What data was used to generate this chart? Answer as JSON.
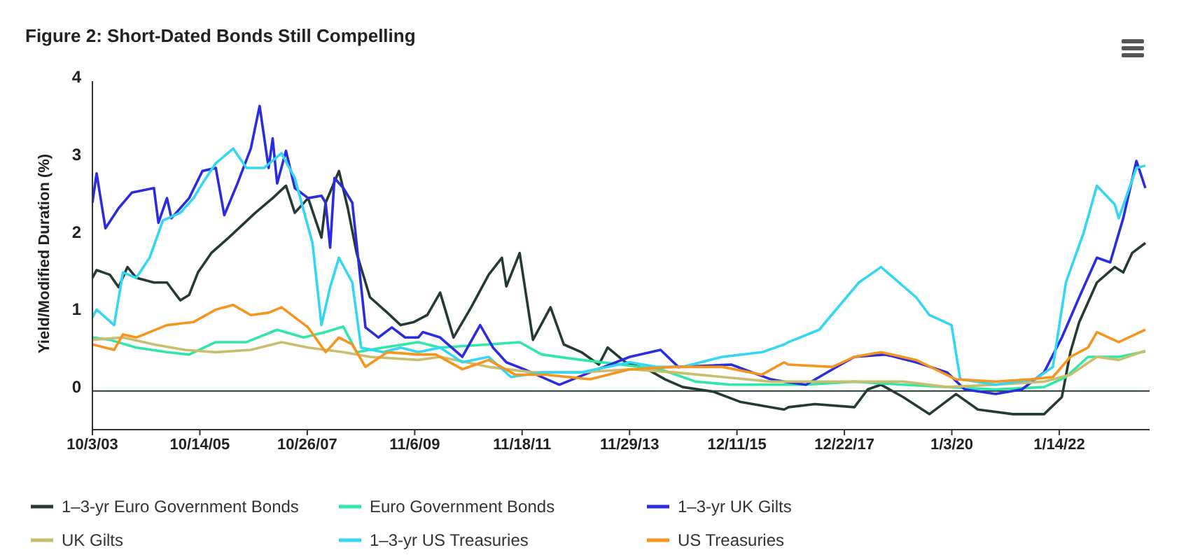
{
  "chart_data": {
    "type": "line",
    "title": "Figure 2: Short-Dated Bonds Still Compelling",
    "ylabel": "Yield/Modified Duration (%)",
    "xlim": [
      "2003-10-03",
      "2023-09-30"
    ],
    "xticks": [
      {
        "value": "2003-10-03",
        "label": "10/3/03"
      },
      {
        "value": "2005-10-14",
        "label": "10/14/05"
      },
      {
        "value": "2007-10-26",
        "label": "10/26/07"
      },
      {
        "value": "2009-11-06",
        "label": "11/6/09"
      },
      {
        "value": "2011-11-18",
        "label": "11/18/11"
      },
      {
        "value": "2013-11-29",
        "label": "11/29/13"
      },
      {
        "value": "2015-12-11",
        "label": "12/11/15"
      },
      {
        "value": "2017-12-22",
        "label": "12/22/17"
      },
      {
        "value": "2020-01-03",
        "label": "1/3/20"
      },
      {
        "value": "2022-01-14",
        "label": "1/14/22"
      }
    ],
    "ylim": [
      -0.5,
      4
    ],
    "yticks": [
      0,
      1,
      2,
      3,
      4
    ],
    "grid": false,
    "legend": "bottom",
    "marker": "none",
    "line_style": "solid",
    "ref_lines": [
      {
        "axis": "y",
        "value": 0,
        "label": null,
        "color": "#263b30"
      }
    ],
    "series": [
      {
        "name": "1–3-yr Euro Government Bonds",
        "color": "#263b30",
        "x": [
          "2003-10-03",
          "2003-11",
          "2004-02",
          "2004-04",
          "2004-06",
          "2004-08",
          "2004-12",
          "2005-03",
          "2005-06",
          "2005-08",
          "2005-10",
          "2006-01",
          "2006-05",
          "2006-08",
          "2006-11",
          "2007-03",
          "2007-06",
          "2007-08",
          "2007-11",
          "2008-02",
          "2008-03",
          "2008-06",
          "2008-08",
          "2008-10",
          "2009-01",
          "2009-05",
          "2009-08",
          "2009-11",
          "2010-02",
          "2010-05",
          "2010-08",
          "2010-12",
          "2011-04",
          "2011-07",
          "2011-08",
          "2011-11",
          "2012-02",
          "2012-06",
          "2012-09",
          "2013-01",
          "2013-05",
          "2013-07",
          "2013-11",
          "2014-04",
          "2014-08",
          "2014-12",
          "2015-07",
          "2016-01",
          "2016-08",
          "2016-11",
          "2016-12",
          "2017-06",
          "2018-03",
          "2018-06",
          "2018-09",
          "2019-02",
          "2019-08",
          "2020-02",
          "2020-07",
          "2021-03",
          "2021-10",
          "2022-02",
          "2022-04",
          "2022-06",
          "2022-10",
          "2023-02",
          "2023-04",
          "2023-06",
          "2023-09"
        ],
        "values": [
          1.46,
          1.56,
          1.5,
          1.34,
          1.6,
          1.46,
          1.4,
          1.4,
          1.17,
          1.24,
          1.53,
          1.78,
          1.98,
          2.14,
          2.3,
          2.49,
          2.65,
          2.3,
          2.49,
          1.98,
          2.43,
          2.84,
          2.36,
          1.78,
          1.21,
          1.01,
          0.85,
          0.89,
          0.98,
          1.27,
          0.69,
          1.08,
          1.5,
          1.72,
          1.35,
          1.78,
          0.66,
          1.08,
          0.6,
          0.5,
          0.34,
          0.56,
          0.37,
          0.28,
          0.15,
          0.05,
          -0.01,
          -0.14,
          -0.21,
          -0.24,
          -0.21,
          -0.17,
          -0.21,
          0.02,
          0.08,
          -0.08,
          -0.3,
          -0.04,
          -0.24,
          -0.3,
          -0.3,
          -0.08,
          0.5,
          0.89,
          1.4,
          1.6,
          1.53,
          1.78,
          1.91
        ]
      },
      {
        "name": "Euro Government Bonds",
        "color": "#2ee8a8",
        "x": [
          "2003-10-03",
          "2004-02",
          "2004-08",
          "2005-03",
          "2005-08",
          "2006-02",
          "2006-09",
          "2007-04",
          "2007-10",
          "2008-03",
          "2008-07",
          "2008-10",
          "2009-04",
          "2009-12",
          "2010-05",
          "2011-04",
          "2011-11",
          "2012-04",
          "2013-01",
          "2013-10",
          "2014-07",
          "2015-03",
          "2015-11",
          "2016-11",
          "2017-04",
          "2018-03",
          "2019-02",
          "2019-12",
          "2020-11",
          "2021-10",
          "2022-03",
          "2022-08",
          "2023-03",
          "2023-09"
        ],
        "values": [
          0.69,
          0.66,
          0.56,
          0.5,
          0.47,
          0.63,
          0.63,
          0.79,
          0.69,
          0.76,
          0.83,
          0.5,
          0.56,
          0.63,
          0.56,
          0.6,
          0.63,
          0.47,
          0.4,
          0.34,
          0.28,
          0.12,
          0.08,
          0.08,
          0.08,
          0.12,
          0.08,
          0.05,
          0.02,
          0.05,
          0.18,
          0.44,
          0.44,
          0.51
        ]
      },
      {
        "name": "1–3-yr UK Gilts",
        "color": "#2b2be0",
        "x": [
          "2003-10-03",
          "2003-11",
          "2004-01",
          "2004-04",
          "2004-07",
          "2004-12",
          "2005-01",
          "2005-03",
          "2005-04",
          "2005-08",
          "2005-11",
          "2006-02",
          "2006-04",
          "2006-07",
          "2006-10",
          "2006-12",
          "2007-02",
          "2007-03",
          "2007-04",
          "2007-06",
          "2007-08",
          "2007-11",
          "2008-02",
          "2008-03",
          "2008-04",
          "2008-05",
          "2008-07",
          "2008-09",
          "2008-12",
          "2009-03",
          "2009-06",
          "2009-09",
          "2009-12",
          "2010-01",
          "2010-05",
          "2010-10",
          "2011-02",
          "2011-05",
          "2011-08",
          "2011-12",
          "2012-08",
          "2013-03",
          "2013-12",
          "2014-07",
          "2014-11",
          "2015-11",
          "2016-08",
          "2016-11",
          "2017-04",
          "2017-10",
          "2018-03",
          "2018-10",
          "2019-05",
          "2019-12",
          "2020-04",
          "2020-11",
          "2021-05",
          "2021-10",
          "2022-02",
          "2022-06",
          "2022-10",
          "2023-01",
          "2023-04",
          "2023-07",
          "2023-09"
        ],
        "values": [
          2.43,
          2.81,
          2.1,
          2.36,
          2.56,
          2.62,
          2.17,
          2.49,
          2.23,
          2.49,
          2.84,
          2.88,
          2.27,
          2.68,
          3.13,
          3.68,
          2.88,
          3.26,
          2.68,
          3.1,
          2.62,
          2.49,
          2.52,
          2.43,
          1.85,
          2.75,
          2.62,
          2.43,
          0.82,
          0.69,
          0.82,
          0.69,
          0.69,
          0.76,
          0.69,
          0.44,
          0.85,
          0.56,
          0.37,
          0.28,
          0.08,
          0.24,
          0.44,
          0.53,
          0.31,
          0.34,
          0.15,
          0.12,
          0.08,
          0.28,
          0.44,
          0.47,
          0.37,
          0.24,
          0.02,
          -0.04,
          0.02,
          0.24,
          0.69,
          1.21,
          1.72,
          1.66,
          2.23,
          2.97,
          2.62
        ]
      },
      {
        "name": "UK Gilts",
        "color": "#c9bd6e",
        "x": [
          "2003-10-03",
          "2004-05",
          "2004-12",
          "2005-07",
          "2006-02",
          "2006-10",
          "2007-05",
          "2007-11",
          "2008-07",
          "2009-01",
          "2009-12",
          "2010-05",
          "2011-04",
          "2012-02",
          "2013-01",
          "2013-12",
          "2014-10",
          "2015-09",
          "2016-08",
          "2017-04",
          "2018-03",
          "2019-02",
          "2019-12",
          "2020-11",
          "2021-10",
          "2022-04",
          "2022-10",
          "2023-03",
          "2023-09"
        ],
        "values": [
          0.66,
          0.69,
          0.6,
          0.53,
          0.5,
          0.53,
          0.63,
          0.56,
          0.5,
          0.44,
          0.4,
          0.44,
          0.31,
          0.24,
          0.24,
          0.28,
          0.24,
          0.18,
          0.12,
          0.12,
          0.12,
          0.12,
          0.05,
          0.08,
          0.12,
          0.21,
          0.44,
          0.4,
          0.52
        ]
      },
      {
        "name": "1–3-yr US Treasuries",
        "color": "#33d6f5",
        "x": [
          "2003-10-03",
          "2003-11",
          "2004-03",
          "2004-05",
          "2004-08",
          "2004-11",
          "2005-02",
          "2005-06",
          "2005-09",
          "2005-11",
          "2006-02",
          "2006-06",
          "2006-09",
          "2007-01",
          "2007-05",
          "2007-08",
          "2007-12",
          "2008-02",
          "2008-04",
          "2008-06",
          "2008-09",
          "2008-11",
          "2009-04",
          "2009-08",
          "2009-12",
          "2010-05",
          "2010-10",
          "2011-04",
          "2011-09",
          "2012-04",
          "2013-01",
          "2013-12",
          "2014-06",
          "2014-12",
          "2015-09",
          "2016-06",
          "2016-11",
          "2016-12",
          "2017-07",
          "2018-04",
          "2018-09",
          "2019-05",
          "2019-08",
          "2020-01",
          "2020-03",
          "2020-11",
          "2021-08",
          "2021-12",
          "2022-03",
          "2022-07",
          "2022-10",
          "2023-02",
          "2023-03",
          "2023-07",
          "2023-09"
        ],
        "values": [
          0.95,
          1.05,
          0.85,
          1.53,
          1.46,
          1.72,
          2.2,
          2.3,
          2.49,
          2.68,
          2.94,
          3.13,
          2.88,
          2.88,
          3.07,
          2.75,
          1.91,
          0.85,
          1.34,
          1.72,
          1.4,
          0.56,
          0.5,
          0.56,
          0.5,
          0.56,
          0.37,
          0.44,
          0.18,
          0.24,
          0.24,
          0.37,
          0.31,
          0.31,
          0.44,
          0.5,
          0.6,
          0.63,
          0.79,
          1.4,
          1.6,
          1.21,
          0.98,
          0.85,
          0.15,
          0.08,
          0.15,
          0.31,
          1.4,
          2.04,
          2.65,
          2.41,
          2.23,
          2.88,
          2.91
        ]
      },
      {
        "name": "US Treasuries",
        "color": "#f7941d",
        "x": [
          "2003-10-03",
          "2004-03",
          "2004-05",
          "2004-08",
          "2005-03",
          "2005-09",
          "2006-02",
          "2006-06",
          "2006-10",
          "2007-02",
          "2007-05",
          "2007-11",
          "2008-03",
          "2008-06",
          "2008-09",
          "2008-12",
          "2009-05",
          "2009-12",
          "2010-04",
          "2010-10",
          "2011-04",
          "2011-10",
          "2012-05",
          "2013-03",
          "2013-12",
          "2014-10",
          "2015-09",
          "2016-06",
          "2016-11",
          "2016-12",
          "2017-10",
          "2018-03",
          "2018-09",
          "2019-05",
          "2020-02",
          "2020-11",
          "2021-07",
          "2021-12",
          "2022-04",
          "2022-08",
          "2022-10",
          "2023-03",
          "2023-09"
        ],
        "values": [
          0.6,
          0.53,
          0.73,
          0.69,
          0.85,
          0.89,
          1.05,
          1.11,
          0.98,
          1.01,
          1.08,
          0.82,
          0.5,
          0.69,
          0.6,
          0.31,
          0.5,
          0.47,
          0.47,
          0.28,
          0.4,
          0.21,
          0.21,
          0.15,
          0.28,
          0.31,
          0.31,
          0.21,
          0.37,
          0.34,
          0.31,
          0.44,
          0.5,
          0.4,
          0.15,
          0.12,
          0.15,
          0.18,
          0.44,
          0.56,
          0.76,
          0.63,
          0.79
        ]
      }
    ]
  }
}
